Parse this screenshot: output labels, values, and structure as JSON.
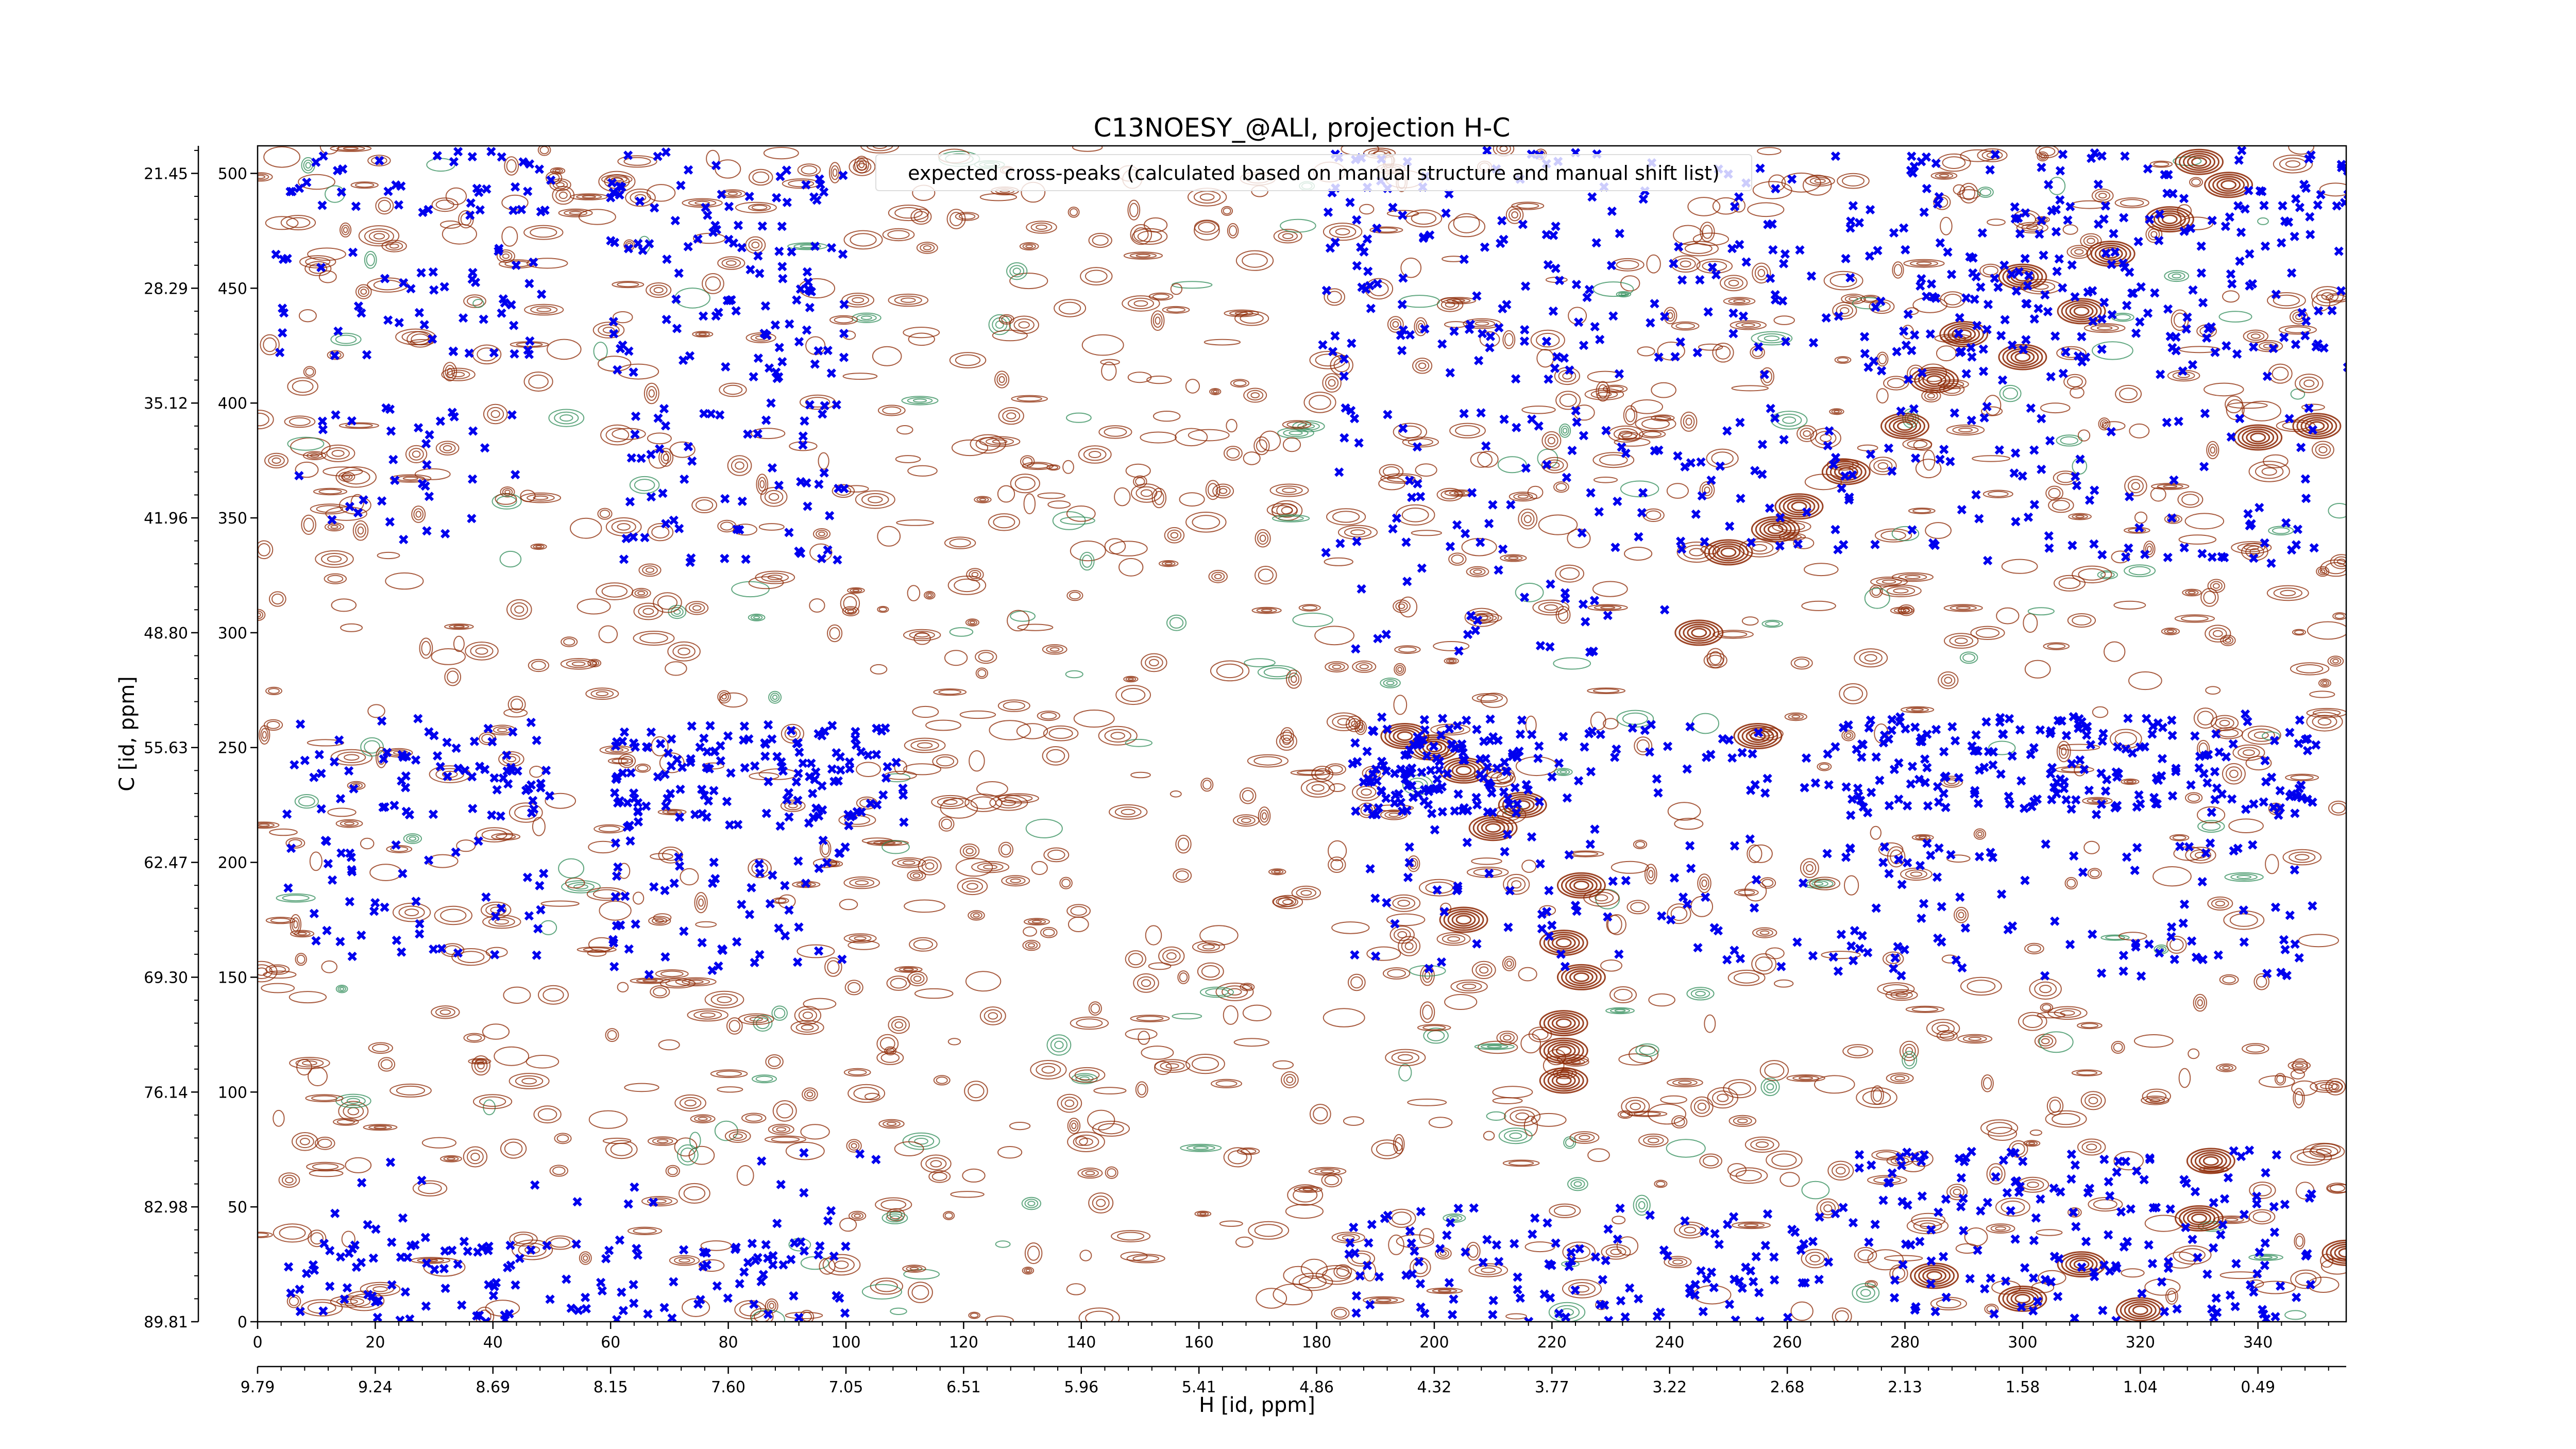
{
  "chart_data": {
    "type": "scatter",
    "title": "C13NOESY_@ALI, projection H-C",
    "xlabel": "H [id, ppm]",
    "ylabel": "C [id, ppm]",
    "legend": {
      "label": "expected cross-peaks (calculated based on manual structure and manual shift list)",
      "placement": "top-center"
    },
    "x_index_axis": {
      "range": [
        0,
        355
      ],
      "ticks": [
        0,
        20,
        40,
        60,
        80,
        100,
        120,
        140,
        160,
        180,
        200,
        220,
        240,
        260,
        280,
        300,
        320,
        340
      ],
      "tick_labels": [
        "0",
        "20",
        "40",
        "60",
        "80",
        "100",
        "120",
        "140",
        "160",
        "180",
        "200",
        "220",
        "240",
        "260",
        "280",
        "300",
        "320",
        "340"
      ]
    },
    "x_ppm_axis": {
      "tick_labels": [
        "9.79",
        "9.24",
        "8.69",
        "8.15",
        "7.60",
        "7.05",
        "6.51",
        "5.96",
        "5.41",
        "4.86",
        "4.32",
        "3.77",
        "3.22",
        "2.68",
        "2.13",
        "1.58",
        "1.04",
        "0.49"
      ]
    },
    "y_index_axis": {
      "range": [
        0,
        512
      ],
      "ticks": [
        0,
        50,
        100,
        150,
        200,
        250,
        300,
        350,
        400,
        450,
        500
      ],
      "tick_labels": [
        "0",
        "50",
        "100",
        "150",
        "200",
        "250",
        "300",
        "350",
        "400",
        "450",
        "500"
      ]
    },
    "y_ppm_axis": {
      "tick_labels": [
        "89.81",
        "82.98",
        "76.14",
        "69.30",
        "62.47",
        "55.63",
        "48.80",
        "41.96",
        "35.12",
        "28.29",
        "21.45"
      ]
    },
    "series": [
      {
        "name": "expected cross-peaks (calculated based on manual structure and manual shift list)",
        "color": "#0000ee",
        "marker": "x",
        "clusters": [
          {
            "x": [
              5,
              50
            ],
            "y": [
              480,
              510
            ],
            "n": 40
          },
          {
            "x": [
              3,
              50
            ],
            "y": [
              420,
              470
            ],
            "n": 50
          },
          {
            "x": [
              5,
              45
            ],
            "y": [
              340,
              400
            ],
            "n": 35
          },
          {
            "x": [
              60,
              100
            ],
            "y": [
              410,
              510
            ],
            "n": 110
          },
          {
            "x": [
              60,
              100
            ],
            "y": [
              330,
              400
            ],
            "n": 60
          },
          {
            "x": [
              5,
              50
            ],
            "y": [
              220,
              265
            ],
            "n": 70
          },
          {
            "x": [
              60,
              110
            ],
            "y": [
              215,
              260
            ],
            "n": 140
          },
          {
            "x": [
              5,
              50
            ],
            "y": [
              155,
              210
            ],
            "n": 45
          },
          {
            "x": [
              60,
              100
            ],
            "y": [
              150,
              210
            ],
            "n": 55
          },
          {
            "x": [
              5,
              110
            ],
            "y": [
              30,
              75
            ],
            "n": 30
          },
          {
            "x": [
              5,
              100
            ],
            "y": [
              0,
              35
            ],
            "n": 120
          },
          {
            "x": [
              180,
              270
            ],
            "y": [
              410,
              510
            ],
            "n": 160
          },
          {
            "x": [
              180,
              240
            ],
            "y": [
              290,
              400
            ],
            "n": 80
          },
          {
            "x": [
              185,
              215
            ],
            "y": [
              220,
              265
            ],
            "n": 130
          },
          {
            "x": [
              215,
              275
            ],
            "y": [
              225,
              260
            ],
            "n": 50
          },
          {
            "x": [
              185,
              270
            ],
            "y": [
              150,
              215
            ],
            "n": 70
          },
          {
            "x": [
              185,
              270
            ],
            "y": [
              0,
              50
            ],
            "n": 120
          },
          {
            "x": [
              270,
              360
            ],
            "y": [
              410,
              510
            ],
            "n": 260
          },
          {
            "x": [
              240,
              350
            ],
            "y": [
              330,
              400
            ],
            "n": 120
          },
          {
            "x": [
              270,
              350
            ],
            "y": [
              220,
              265
            ],
            "n": 200
          },
          {
            "x": [
              270,
              350
            ],
            "y": [
              150,
              210
            ],
            "n": 90
          },
          {
            "x": [
              270,
              350
            ],
            "y": [
              0,
              75
            ],
            "n": 170
          }
        ]
      }
    ],
    "contour_colors": {
      "positive": "#8b2500",
      "negative": "#2e8b57"
    },
    "grid": false
  }
}
